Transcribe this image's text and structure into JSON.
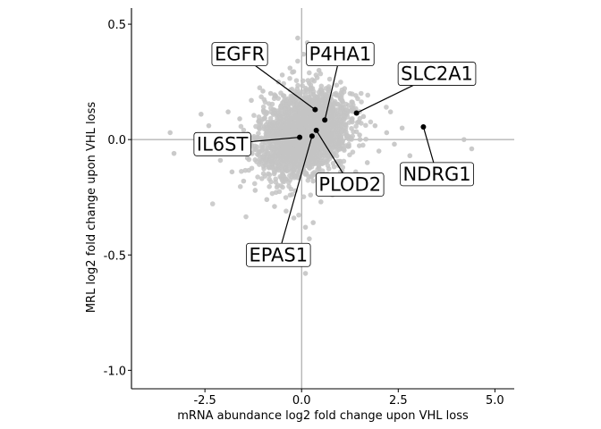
{
  "chart_data": {
    "type": "scatter",
    "title": "",
    "xlabel": "mRNA abundance log2 fold change upon VHL loss",
    "ylabel": "MRL log2 fold change upon VHL loss",
    "xlim": [
      -4.4,
      5.5
    ],
    "ylim": [
      -1.08,
      0.57
    ],
    "x_ticks": [
      -2.5,
      0.0,
      2.5,
      5.0
    ],
    "x_tick_labels": [
      "-2.5",
      "0.0",
      "2.5",
      "5.0"
    ],
    "y_ticks": [
      0.5,
      0.0,
      -0.5,
      -1.0
    ],
    "y_tick_labels": [
      "0.5",
      "0.0",
      "-0.5",
      "-1.0"
    ],
    "reference_lines": {
      "x": 0,
      "y": 0
    },
    "background_series": {
      "color": "#c4c4c4",
      "points": [
        [
          -3.4,
          0.03
        ],
        [
          -3.3,
          -0.06
        ],
        [
          -2.5,
          -0.01
        ],
        [
          -2.4,
          0.06
        ],
        [
          -2.1,
          -0.09
        ],
        [
          -2.6,
          0.11
        ],
        [
          -1.9,
          0.12
        ],
        [
          -1.8,
          -0.14
        ],
        [
          -1.6,
          0.09
        ],
        [
          -1.5,
          -0.18
        ],
        [
          -1.3,
          0.17
        ],
        [
          -1.2,
          -0.22
        ],
        [
          -1.0,
          0.21
        ],
        [
          -0.9,
          -0.26
        ],
        [
          -0.8,
          0.2
        ],
        [
          -0.7,
          -0.29
        ],
        [
          -0.6,
          0.25
        ],
        [
          -0.5,
          0.28
        ],
        [
          -0.4,
          -0.31
        ],
        [
          -0.3,
          0.31
        ],
        [
          -0.2,
          -0.34
        ],
        [
          -0.1,
          0.34
        ],
        [
          0.05,
          0.37
        ],
        [
          0.1,
          -0.38
        ],
        [
          0.15,
          0.42
        ],
        [
          0.2,
          -0.43
        ],
        [
          0.25,
          0.36
        ],
        [
          0.1,
          -0.58
        ],
        [
          0.3,
          -0.36
        ],
        [
          0.45,
          0.3
        ],
        [
          0.5,
          -0.27
        ],
        [
          0.7,
          0.22
        ],
        [
          0.8,
          -0.24
        ],
        [
          1.0,
          0.18
        ],
        [
          1.1,
          -0.19
        ],
        [
          1.3,
          0.14
        ],
        [
          1.4,
          -0.14
        ],
        [
          1.6,
          0.1
        ],
        [
          1.7,
          -0.1
        ],
        [
          1.9,
          0.06
        ],
        [
          2.0,
          -0.05
        ],
        [
          2.2,
          0.03
        ],
        [
          2.3,
          0.12
        ],
        [
          2.4,
          -0.02
        ],
        [
          2.6,
          0.05
        ],
        [
          2.8,
          -0.07
        ],
        [
          4.2,
          0.0
        ],
        [
          4.4,
          -0.04
        ],
        [
          -0.2,
          0.15
        ],
        [
          0.6,
          0.12
        ],
        [
          -0.4,
          -0.12
        ],
        [
          0.3,
          -0.18
        ],
        [
          -1.1,
          0.05
        ],
        [
          1.2,
          -0.03
        ],
        [
          -0.7,
          -0.05
        ],
        [
          0.9,
          0.07
        ],
        [
          -1.4,
          -0.08
        ],
        [
          1.5,
          0.02
        ],
        [
          -0.1,
          0.44
        ],
        [
          0.0,
          -0.5
        ]
      ]
    },
    "highlighted": {
      "color": "#000000",
      "points": [
        {
          "label": "EGFR",
          "x": 0.35,
          "y": 0.13,
          "label_x": -1.6,
          "label_y": 0.37
        },
        {
          "label": "P4HA1",
          "x": 0.6,
          "y": 0.085,
          "label_x": 1.0,
          "label_y": 0.37
        },
        {
          "label": "SLC2A1",
          "x": 1.42,
          "y": 0.115,
          "label_x": 3.5,
          "label_y": 0.285
        },
        {
          "label": "IL6ST",
          "x": -0.05,
          "y": 0.01,
          "label_x": -2.05,
          "label_y": -0.02
        },
        {
          "label": "NDRG1",
          "x": 3.15,
          "y": 0.055,
          "label_x": 3.5,
          "label_y": -0.15
        },
        {
          "label": "PLOD2",
          "x": 0.38,
          "y": 0.04,
          "label_x": 1.25,
          "label_y": -0.195
        },
        {
          "label": "EPAS1",
          "x": 0.27,
          "y": 0.015,
          "label_x": -0.6,
          "label_y": -0.5
        }
      ]
    },
    "grid": false,
    "legend": "none"
  }
}
